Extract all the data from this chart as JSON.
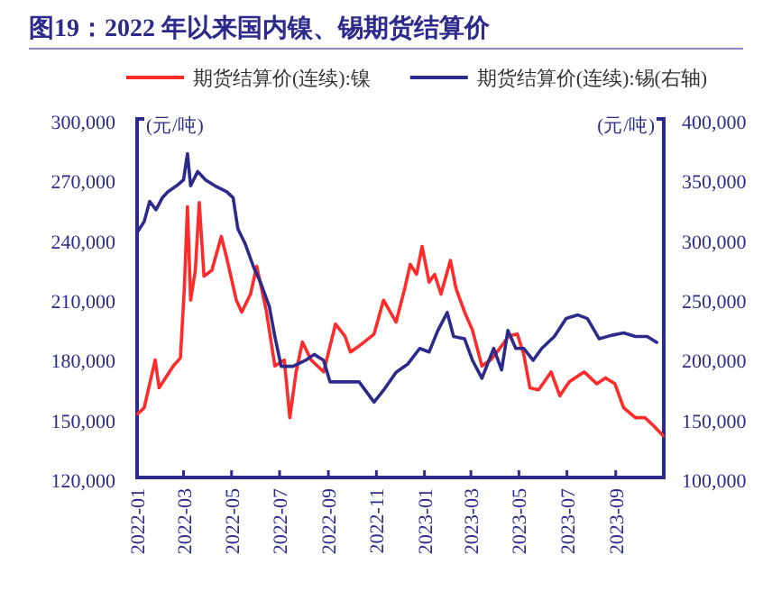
{
  "chart_data": {
    "type": "line",
    "title": "图19：2022 年以来国内镍、锡期货结算价",
    "ylabel": "(元/吨)",
    "y2label": "(元/吨)",
    "xlim": [
      "2022-01-01",
      "2023-11-01"
    ],
    "xticks": [
      "2022-01",
      "2022-03",
      "2022-05",
      "2022-07",
      "2022-09",
      "2022-11",
      "2023-01",
      "2023-03",
      "2023-05",
      "2023-07",
      "2023-09"
    ],
    "ylim": [
      120000,
      300000
    ],
    "yticks": [
      {
        "value": 120000,
        "label": "120,000"
      },
      {
        "value": 150000,
        "label": "150,000"
      },
      {
        "value": 180000,
        "label": "180,000"
      },
      {
        "value": 210000,
        "label": "210,000"
      },
      {
        "value": 240000,
        "label": "240,000"
      },
      {
        "value": 270000,
        "label": "270,000"
      },
      {
        "value": 300000,
        "label": "300,000"
      }
    ],
    "y2lim": [
      100000,
      400000
    ],
    "y2ticks": [
      {
        "value": 100000,
        "label": "100,000"
      },
      {
        "value": 150000,
        "label": "150,000"
      },
      {
        "value": 200000,
        "label": "200,000"
      },
      {
        "value": 250000,
        "label": "250,000"
      },
      {
        "value": 300000,
        "label": "300,000"
      },
      {
        "value": 350000,
        "label": "350,000"
      },
      {
        "value": 400000,
        "label": "400,000"
      }
    ],
    "legend": "top",
    "grid": false,
    "series": [
      {
        "name": "期货结算价(连续):镍",
        "color": "#ff2b2b",
        "x": [
          "2022-01-02",
          "2022-01-10",
          "2022-01-17",
          "2022-01-24",
          "2022-01-29",
          "2022-02-16",
          "2022-02-25",
          "2022-03-02",
          "2022-03-06",
          "2022-03-10",
          "2022-03-16",
          "2022-03-21",
          "2022-03-27",
          "2022-04-06",
          "2022-04-18",
          "2022-04-25",
          "2022-05-07",
          "2022-05-14",
          "2022-05-25",
          "2022-06-02",
          "2022-06-14",
          "2022-06-25",
          "2022-07-07",
          "2022-07-14",
          "2022-07-22",
          "2022-07-30",
          "2022-08-10",
          "2022-08-26",
          "2022-09-10",
          "2022-09-22",
          "2022-09-29",
          "2022-10-10",
          "2022-10-29",
          "2022-11-10",
          "2022-11-26",
          "2022-12-07",
          "2022-12-14",
          "2022-12-22",
          "2022-12-29",
          "2023-01-07",
          "2023-01-14",
          "2023-01-22",
          "2023-02-03",
          "2023-02-10",
          "2023-02-21",
          "2023-03-03",
          "2023-03-15",
          "2023-03-26",
          "2023-04-07",
          "2023-04-18",
          "2023-04-29",
          "2023-05-07",
          "2023-05-15",
          "2023-05-26",
          "2023-06-11",
          "2023-06-22",
          "2023-07-04",
          "2023-07-23",
          "2023-08-08",
          "2023-08-19",
          "2023-08-31",
          "2023-09-11",
          "2023-09-26",
          "2023-10-08",
          "2023-10-19",
          "2023-10-31"
        ],
        "values": [
          152000,
          155000,
          167000,
          179000,
          165000,
          176000,
          180000,
          215000,
          256000,
          209000,
          224000,
          258000,
          221000,
          224000,
          241000,
          230000,
          209000,
          203000,
          212000,
          226000,
          204000,
          176000,
          179000,
          150000,
          173000,
          188000,
          179000,
          173000,
          197000,
          191000,
          183000,
          186000,
          192000,
          209000,
          198000,
          215000,
          227000,
          222000,
          236000,
          218000,
          222000,
          212000,
          229000,
          215000,
          203000,
          194000,
          176000,
          179000,
          185000,
          191000,
          192000,
          182000,
          165000,
          164000,
          173000,
          161000,
          168000,
          173000,
          167000,
          170000,
          167000,
          155000,
          150000,
          150000,
          146000,
          141000
        ]
      },
      {
        "name": "期货结算价(连续):锡(右轴)",
        "color": "#2e2a8c",
        "axis": "y2",
        "x": [
          "2022-01-02",
          "2022-01-10",
          "2022-01-17",
          "2022-01-25",
          "2022-02-02",
          "2022-02-09",
          "2022-02-20",
          "2022-03-01",
          "2022-03-06",
          "2022-03-10",
          "2022-03-19",
          "2022-03-29",
          "2022-04-10",
          "2022-04-25",
          "2022-05-03",
          "2022-05-09",
          "2022-05-18",
          "2022-05-29",
          "2022-06-07",
          "2022-06-18",
          "2022-06-25",
          "2022-07-03",
          "2022-07-18",
          "2022-08-03",
          "2022-08-14",
          "2022-08-26",
          "2022-09-03",
          "2022-09-18",
          "2022-10-10",
          "2022-10-29",
          "2022-11-10",
          "2022-11-26",
          "2022-12-11",
          "2022-12-26",
          "2023-01-07",
          "2023-01-18",
          "2023-01-30",
          "2023-02-07",
          "2023-02-21",
          "2023-03-03",
          "2023-03-15",
          "2023-03-30",
          "2023-04-09",
          "2023-04-17",
          "2023-04-27",
          "2023-05-07",
          "2023-05-19",
          "2023-05-30",
          "2023-06-15",
          "2023-06-30",
          "2023-07-15",
          "2023-07-27",
          "2023-08-11",
          "2023-08-27",
          "2023-09-11",
          "2023-09-26",
          "2023-10-11",
          "2023-10-23"
        ],
        "values": [
          306000,
          314000,
          331000,
          324000,
          334000,
          339000,
          344000,
          349000,
          371000,
          344000,
          356000,
          349000,
          344000,
          339000,
          334000,
          308000,
          296000,
          276000,
          263000,
          243000,
          218000,
          193000,
          193000,
          198000,
          203000,
          198000,
          180000,
          180000,
          180000,
          163000,
          173000,
          188000,
          195000,
          208000,
          205000,
          223000,
          238000,
          218000,
          216000,
          198000,
          183000,
          208000,
          190000,
          223000,
          208000,
          208000,
          198000,
          208000,
          218000,
          233000,
          236000,
          233000,
          216000,
          219000,
          221000,
          218000,
          218000,
          213000
        ]
      }
    ]
  }
}
